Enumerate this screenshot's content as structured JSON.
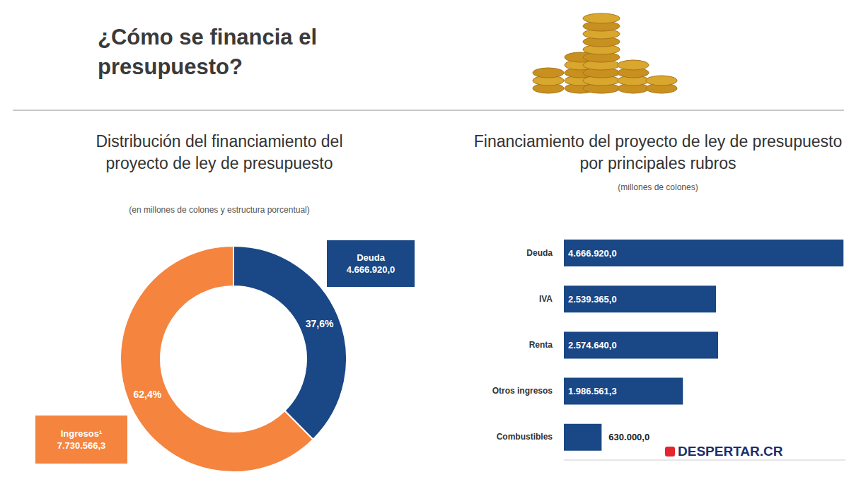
{
  "title": "¿Cómo se financia el presupuesto?",
  "logo": "DESPERTAR.CR",
  "chart_data": [
    {
      "type": "pie",
      "title": "Distribución del financiamiento del proyecto de ley de presupuesto",
      "subtitle": "(en millones de colones y estructura porcentual)",
      "categories": [
        "Deuda",
        "Ingresos¹"
      ],
      "values": [
        37.6,
        62.4
      ],
      "value_labels": [
        "37,6%",
        "62,4%"
      ],
      "amounts": [
        4666920.0,
        7730566.3
      ],
      "amount_labels": [
        "4.666.920,0",
        "7.730.566,3"
      ],
      "colors": [
        "#1a4785",
        "#f5843f"
      ],
      "data_labels": true
    },
    {
      "type": "bar",
      "orientation": "horizontal",
      "title": "Financiamiento del proyecto de ley de presupuesto por principales rubros",
      "subtitle": "(millones de colones)",
      "categories": [
        "Deuda",
        "IVA",
        "Renta",
        "Otros ingresos",
        "Combustibles"
      ],
      "values": [
        4666920.0,
        2539365.0,
        2574640.0,
        1986561.3,
        630000.0
      ],
      "value_labels": [
        "4.666.920,0",
        "2.539.365,0",
        "2.574.640,0",
        "1.986.561,3",
        "630.000,0"
      ],
      "xlim": [
        0,
        4700000
      ],
      "color": "#1a4785",
      "data_labels": true,
      "tick_labels": "y"
    }
  ]
}
